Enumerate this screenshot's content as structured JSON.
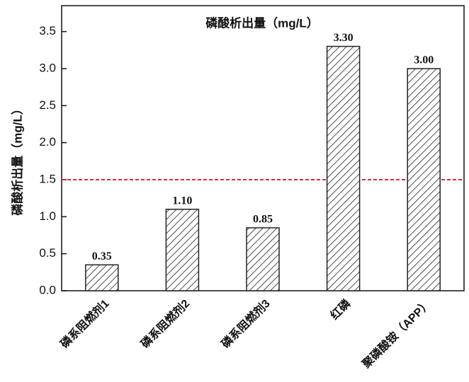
{
  "chart_data": {
    "type": "bar",
    "title": "磷酸析出量（mg/L）",
    "ylabel": "磷酸析出量（mg/L）",
    "categories": [
      "磷系阻燃剂1",
      "磷系阻燃剂2",
      "磷系阻燃剂3",
      "红磷",
      "聚磷酸铵（APP）"
    ],
    "values": [
      0.35,
      1.1,
      0.85,
      3.3,
      3.0
    ],
    "value_labels": [
      "0.35",
      "1.10",
      "0.85",
      "3.30",
      "3.00"
    ],
    "color": "#222222",
    "ylim": [
      0,
      3.85
    ],
    "yticks": [
      {
        "value": 0,
        "label": "0.0"
      },
      0.5,
      {
        "value": 1,
        "label": "1.0"
      },
      1.5,
      {
        "value": 2,
        "label": "2.0"
      },
      2.5,
      {
        "value": 3,
        "label": "3.0"
      },
      3.5
    ],
    "reference_line": {
      "value": 1.5,
      "color": "#d0303a"
    }
  }
}
